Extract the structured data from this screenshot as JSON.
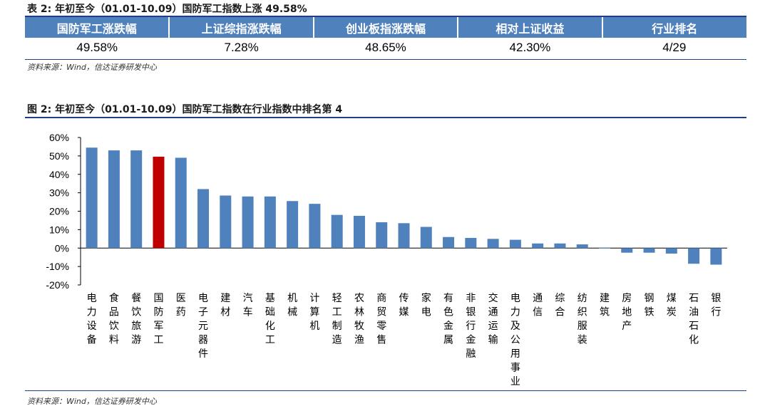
{
  "table": {
    "caption": "表 2: 年初至今（01.01-10.09）国防军工指数上涨 49.58%",
    "headers": [
      "国防军工涨跌幅",
      "上证综指涨跌幅",
      "创业板指涨跌幅",
      "相对上证收益",
      "行业排名"
    ],
    "values": [
      "49.58%",
      "7.28%",
      "48.65%",
      "42.30%",
      "4/29"
    ],
    "source": "资料来源：Wind，信达证券研发中心"
  },
  "figure": {
    "caption": "图 2: 年初至今（01.01-10.09）国防军工指数在行业指数中排名第 4",
    "source": "资料来源：Wind，信达证券研发中心"
  },
  "colors": {
    "bar": "#4f81bd",
    "highlight": "#c00000",
    "header_bg": "#4f81bd",
    "rule": "#1f3e8a"
  },
  "chart_data": {
    "type": "bar",
    "title": "",
    "xlabel": "",
    "ylabel": "",
    "ylim": [
      -20,
      60
    ],
    "yticks": [
      "60%",
      "50%",
      "40%",
      "30%",
      "20%",
      "10%",
      "0%",
      "-10%",
      "-20%"
    ],
    "highlight_category": "国防军工",
    "categories": [
      "电力设备",
      "食品饮料",
      "餐饮旅游",
      "国防军工",
      "医药",
      "电子元器件",
      "建材",
      "汽车",
      "基础化工",
      "机械",
      "计算机",
      "轻工制造",
      "农林牧渔",
      "商贸零售",
      "传媒",
      "家电",
      "有色金属",
      "非银行金融",
      "交通运输",
      "电力及公用事业",
      "通信",
      "综合",
      "纺织服装",
      "建筑",
      "房地产",
      "钢铁",
      "煤炭",
      "石油石化",
      "银行"
    ],
    "values": [
      54.5,
      53.0,
      53.0,
      49.58,
      49.0,
      32.0,
      28.5,
      28.0,
      28.0,
      25.5,
      24.0,
      18.0,
      17.5,
      14.0,
      13.5,
      11.5,
      6.0,
      5.5,
      5.0,
      4.5,
      2.5,
      2.5,
      2.0,
      0.2,
      -2.5,
      -2.5,
      -3.0,
      -8.5,
      -9.0
    ]
  }
}
